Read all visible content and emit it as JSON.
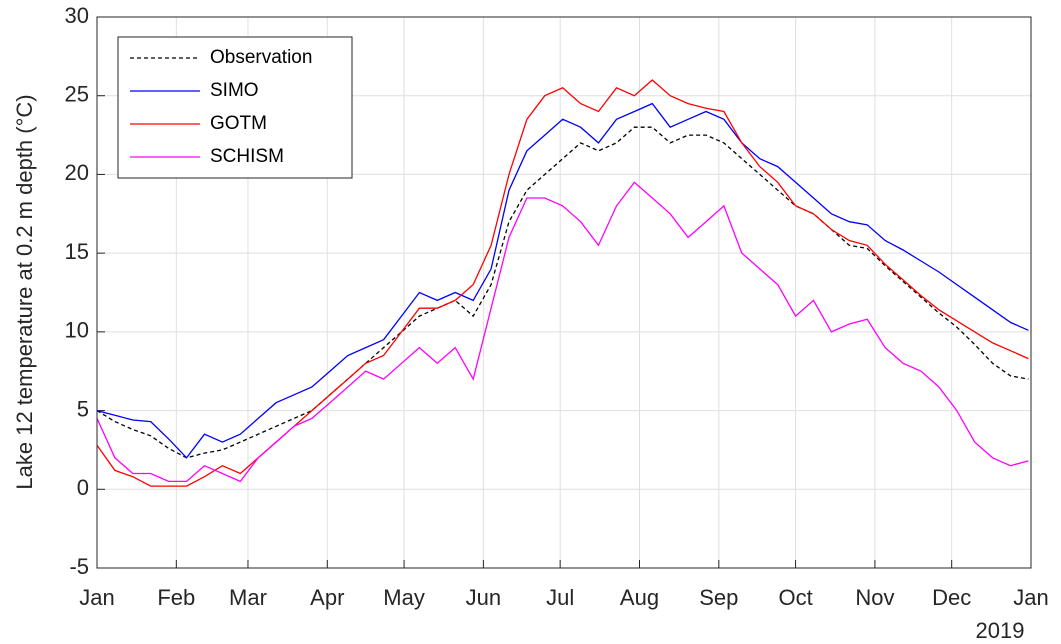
{
  "chart_data": {
    "type": "line",
    "ylabel": "Lake 12 temperature at 0.2 m depth (°C)",
    "x_annotation": "2019",
    "x": [
      0,
      7,
      14,
      21,
      28,
      35,
      42,
      49,
      56,
      63,
      70,
      77,
      84,
      91,
      98,
      105,
      112,
      119,
      126,
      133,
      140,
      147,
      154,
      161,
      168,
      175,
      182,
      189,
      196,
      203,
      210,
      217,
      224,
      231,
      238,
      245,
      252,
      259,
      266,
      273,
      280,
      287,
      294,
      301,
      308,
      315,
      322,
      329,
      336,
      343,
      350,
      357,
      364
    ],
    "xlim": [
      0,
      365
    ],
    "xticks": [
      {
        "value": 0,
        "label": "Jan"
      },
      {
        "value": 31,
        "label": "Feb"
      },
      {
        "value": 59,
        "label": "Mar"
      },
      {
        "value": 90,
        "label": "Apr"
      },
      {
        "value": 120,
        "label": "May"
      },
      {
        "value": 151,
        "label": "Jun"
      },
      {
        "value": 181,
        "label": "Jul"
      },
      {
        "value": 212,
        "label": "Aug"
      },
      {
        "value": 243,
        "label": "Sep"
      },
      {
        "value": 273,
        "label": "Oct"
      },
      {
        "value": 304,
        "label": "Nov"
      },
      {
        "value": 334,
        "label": "Dec"
      },
      {
        "value": 365,
        "label": "Jan"
      }
    ],
    "ylim": [
      -5,
      30
    ],
    "yticks": [
      -5,
      0,
      5,
      10,
      15,
      20,
      25,
      30
    ],
    "grid": true,
    "legend": "upper left",
    "series": [
      {
        "name": "Observation",
        "color": "#000000",
        "dashed": true,
        "values": [
          5.0,
          4.3,
          3.8,
          3.4,
          2.6,
          2.0,
          2.3,
          2.5,
          3.0,
          3.5,
          4.0,
          4.5,
          5.0,
          6.0,
          7.0,
          8.0,
          9.0,
          10.0,
          11.0,
          11.5,
          12.0,
          11.0,
          13.0,
          17.0,
          19.0,
          20.0,
          21.0,
          22.0,
          21.5,
          22.0,
          23.0,
          23.0,
          22.0,
          22.5,
          22.5,
          22.0,
          21.0,
          20.0,
          19.0,
          18.0,
          17.5,
          16.5,
          15.5,
          15.3,
          14.2,
          13.2,
          12.2,
          11.2,
          10.3,
          9.2,
          8.0,
          7.2,
          7.0
        ]
      },
      {
        "name": "SIMO",
        "color": "#0000ff",
        "values": [
          5.0,
          4.7,
          4.4,
          4.3,
          3.2,
          2.0,
          3.5,
          3.0,
          3.5,
          4.5,
          5.5,
          6.0,
          6.5,
          7.5,
          8.5,
          9.0,
          9.5,
          11.0,
          12.5,
          12.0,
          12.5,
          12.0,
          14.0,
          19.0,
          21.5,
          22.5,
          23.5,
          23.0,
          22.0,
          23.5,
          24.0,
          24.5,
          23.0,
          23.5,
          24.0,
          23.5,
          22.0,
          21.0,
          20.5,
          19.5,
          18.5,
          17.5,
          17.0,
          16.8,
          15.8,
          15.2,
          14.5,
          13.8,
          13.0,
          12.2,
          11.4,
          10.6,
          10.1
        ]
      },
      {
        "name": "GOTM",
        "color": "#ff0000",
        "values": [
          2.8,
          1.2,
          0.8,
          0.2,
          0.2,
          0.2,
          0.8,
          1.5,
          1.0,
          2.0,
          3.0,
          4.0,
          5.0,
          6.0,
          7.0,
          8.0,
          8.5,
          10.0,
          11.5,
          11.5,
          12.0,
          13.0,
          15.5,
          20.0,
          23.5,
          25.0,
          25.5,
          24.5,
          24.0,
          25.5,
          25.0,
          26.0,
          25.0,
          24.5,
          24.2,
          24.0,
          22.0,
          20.5,
          19.5,
          18.0,
          17.5,
          16.5,
          15.8,
          15.5,
          14.3,
          13.3,
          12.3,
          11.4,
          10.7,
          10.0,
          9.3,
          8.8,
          8.3
        ]
      },
      {
        "name": "SCHISM",
        "color": "#ff00ff",
        "values": [
          4.5,
          2.0,
          1.0,
          1.0,
          0.5,
          0.5,
          1.5,
          1.0,
          0.5,
          2.0,
          3.0,
          4.0,
          4.5,
          5.5,
          6.5,
          7.5,
          7.0,
          8.0,
          9.0,
          8.0,
          9.0,
          7.0,
          11.5,
          16.0,
          18.5,
          18.5,
          18.0,
          17.0,
          15.5,
          18.0,
          19.5,
          18.5,
          17.5,
          16.0,
          17.0,
          18.0,
          15.0,
          14.0,
          13.0,
          11.0,
          12.0,
          10.0,
          10.5,
          10.8,
          9.0,
          8.0,
          7.5,
          6.5,
          5.0,
          3.0,
          2.0,
          1.5,
          1.8
        ]
      }
    ]
  }
}
